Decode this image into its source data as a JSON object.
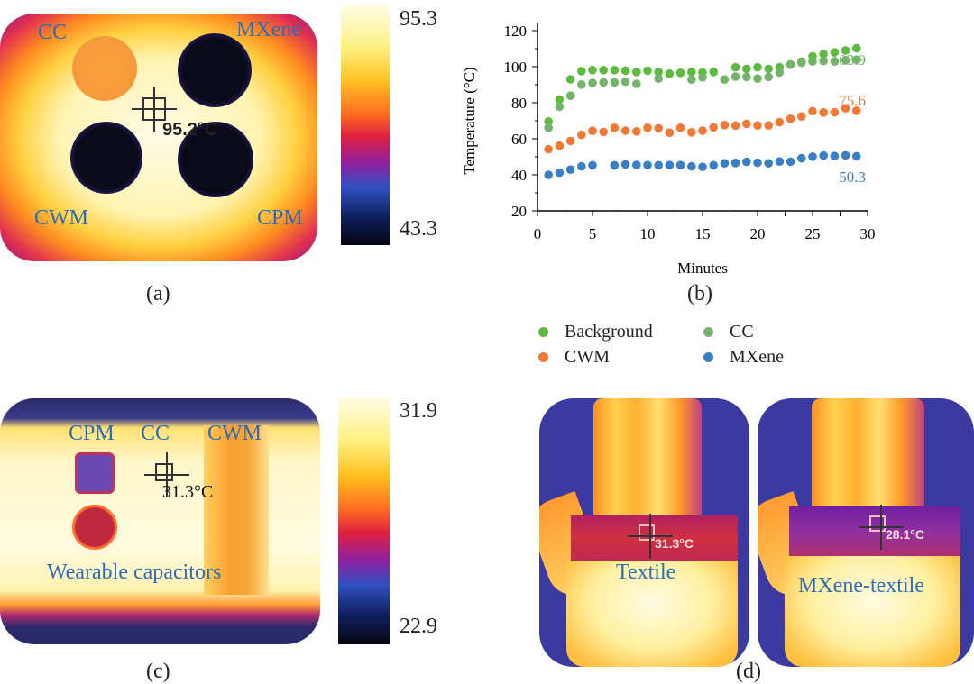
{
  "panel_a": {
    "label": "(a)",
    "sample_labels": {
      "cc": "CC",
      "mxene": "MXene",
      "cwm": "CWM",
      "cpm": "CPM"
    },
    "spot_temp": "95.2°C",
    "colorbar": {
      "max": "95.3",
      "min": "43.3"
    }
  },
  "panel_b": {
    "label": "(b)"
  },
  "panel_c": {
    "label": "(c)",
    "sample_labels": {
      "cpm": "CPM",
      "cc": "CC",
      "cwm": "CWM"
    },
    "caption": "Wearable capacitors",
    "spot_temp": "31.3°C",
    "colorbar": {
      "max": "31.9",
      "min": "22.9"
    }
  },
  "panel_d": {
    "label": "(d)",
    "left": {
      "caption": "Textile",
      "spot_temp": "31.3°C"
    },
    "right": {
      "caption": "MXene-textile",
      "spot_temp": "28.1°C"
    }
  },
  "chart_data": {
    "type": "scatter",
    "xlabel": "Minutes",
    "ylabel": "Temperature (°C)",
    "xlim": [
      0,
      30
    ],
    "ylim": [
      20,
      120
    ],
    "xticks": [
      "0",
      "5",
      "10",
      "15",
      "20",
      "25",
      "30"
    ],
    "yticks": [
      "20",
      "40",
      "60",
      "80",
      "100",
      "120"
    ],
    "grid": false,
    "legend_position": "bottom",
    "x": [
      1,
      2,
      3,
      4,
      5,
      6,
      7,
      8,
      9,
      10,
      11,
      12,
      13,
      14,
      15,
      16,
      17,
      18,
      19,
      20,
      21,
      22,
      23,
      24,
      25,
      26,
      27,
      28,
      29
    ],
    "series": [
      {
        "name": "Background",
        "color": "#5dbb3f",
        "values": [
          69.6,
          81.8,
          93,
          97.5,
          98.1,
          98.1,
          98.1,
          97.8,
          97.1,
          97.8,
          97.1,
          96.1,
          96.6,
          97.1,
          96.8,
          97.1,
          null,
          99.7,
          98.8,
          99.7,
          98.8,
          99.7,
          101.2,
          102.8,
          105.8,
          107,
          108,
          109,
          110.2
        ]
      },
      {
        "name": "CC",
        "color": "#74b46a",
        "values": [
          66.1,
          77.8,
          83.9,
          90.1,
          91,
          91.3,
          91.3,
          91.7,
          90.5,
          null,
          93.4,
          null,
          null,
          92.9,
          94.1,
          null,
          92.9,
          94.5,
          94.3,
          93.4,
          94.3,
          96.8,
          101.2,
          102.2,
          102.9,
          103.2,
          102.9,
          103.6,
          103.9
        ]
      },
      {
        "name": "CWM",
        "color": "#f07a35",
        "values": [
          54.2,
          56.1,
          58.8,
          62.2,
          64.4,
          63.8,
          66.1,
          64.5,
          64.1,
          66.1,
          65.8,
          63.4,
          66.1,
          63.6,
          64.5,
          66.3,
          67.6,
          67.3,
          68.3,
          67.4,
          67.4,
          69.2,
          71.1,
          72.4,
          75.3,
          74.6,
          74.7,
          76.9,
          75.6
        ]
      },
      {
        "name": "MXene",
        "color": "#3a7fc6",
        "values": [
          40,
          41.2,
          42.9,
          44.7,
          45.3,
          null,
          45.3,
          45.8,
          45.5,
          45.4,
          45.3,
          45.4,
          45.4,
          44.7,
          44.4,
          45.3,
          46.4,
          46.6,
          47.2,
          46.7,
          46.4,
          47.4,
          47.3,
          49.2,
          50.1,
          50.7,
          50.4,
          50.8,
          50.3
        ]
      }
    ],
    "annotations": [
      {
        "text": "103.9",
        "color": "#74b46a"
      },
      {
        "text": "75.6",
        "color": "#f07a35"
      },
      {
        "text": "50.3",
        "color": "#3a7fc6"
      }
    ]
  }
}
